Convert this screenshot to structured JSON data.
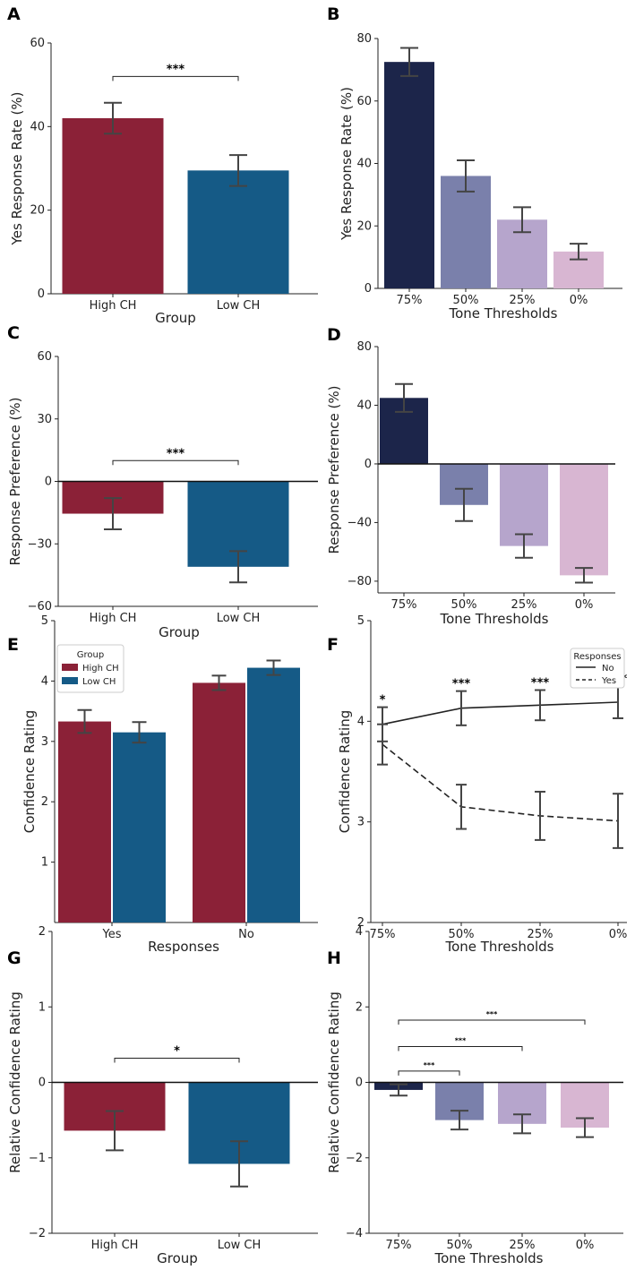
{
  "chart_data": [
    {
      "id": "A",
      "type": "bar",
      "panel_letter": "A",
      "categories": [
        "High CH",
        "Low CH"
      ],
      "values": [
        42,
        29.5
      ],
      "errors": [
        3.7,
        3.7
      ],
      "colors": [
        "#8b2137",
        "#155a86"
      ],
      "xlabel": "Group",
      "ylabel": "Yes Response Rate (%)",
      "ylim": [
        0,
        60
      ],
      "yticks": [
        0,
        20,
        40,
        60
      ],
      "ytick_labels": [
        "0",
        "20",
        "40",
        "60"
      ],
      "significance": [
        {
          "from": 0,
          "to": 1,
          "level": 52,
          "label": "***"
        }
      ]
    },
    {
      "id": "B",
      "type": "bar",
      "panel_letter": "B",
      "categories": [
        "75%",
        "50%",
        "25%",
        "0%"
      ],
      "values": [
        72.5,
        36,
        22,
        11.8
      ],
      "errors": [
        4.5,
        5,
        4,
        2.5
      ],
      "colors": [
        "#1c254a",
        "#7a80ab",
        "#b6a5cc",
        "#d8b6d2"
      ],
      "xlabel": "Tone Thresholds",
      "ylabel": "Yes Response Rate (%)",
      "ylim": [
        0,
        80
      ],
      "yticks": [
        0,
        20,
        40,
        60,
        80
      ],
      "ytick_labels": [
        "0",
        "20",
        "40",
        "60",
        "80"
      ],
      "significance": []
    },
    {
      "id": "C",
      "type": "bar",
      "panel_letter": "C",
      "categories": [
        "High CH",
        "Low CH"
      ],
      "values": [
        -15.5,
        -41
      ],
      "errors": [
        7.5,
        7.5
      ],
      "colors": [
        "#8b2137",
        "#155a86"
      ],
      "xlabel": "Group",
      "ylabel": "Response Preference (%)",
      "ylim": [
        -60,
        60
      ],
      "yticks": [
        -60,
        -30,
        0,
        30,
        60
      ],
      "ytick_labels": [
        "−60",
        "−30",
        "0",
        "30",
        "60"
      ],
      "zero_line": true,
      "significance": [
        {
          "from": 0,
          "to": 1,
          "level": 10,
          "label": "***"
        }
      ]
    },
    {
      "id": "D",
      "type": "bar",
      "panel_letter": "D",
      "categories": [
        "75%",
        "50%",
        "25%",
        "0%"
      ],
      "values": [
        45,
        -28,
        -56,
        -76
      ],
      "errors": [
        9.5,
        11,
        8,
        5
      ],
      "colors": [
        "#1c254a",
        "#7a80ab",
        "#b6a5cc",
        "#d8b6d2"
      ],
      "xlabel": "Tone Thresholds",
      "ylabel": "Response Preference (%)",
      "ylim": [
        -88,
        80
      ],
      "yticks": [
        -80,
        -40,
        0,
        40,
        80
      ],
      "ytick_labels": [
        "−80",
        "−40",
        "0",
        "40",
        "80"
      ],
      "zero_line": true,
      "significance": []
    },
    {
      "id": "E",
      "type": "grouped-bar",
      "panel_letter": "E",
      "categories": [
        "Yes",
        "No"
      ],
      "series": [
        {
          "name": "High CH",
          "values": [
            3.33,
            3.97
          ],
          "errors": [
            0.19,
            0.12
          ],
          "color": "#8b2137"
        },
        {
          "name": "Low CH",
          "values": [
            3.15,
            4.22
          ],
          "errors": [
            0.17,
            0.12
          ],
          "color": "#155a86"
        }
      ],
      "legend_title": "Group",
      "xlabel": "Responses",
      "ylabel": "Confidence Rating",
      "ylim": [
        0,
        5
      ],
      "yticks": [
        1,
        2,
        3,
        4,
        5
      ],
      "ytick_labels": [
        "1",
        "2",
        "3",
        "4",
        "5"
      ],
      "significance": []
    },
    {
      "id": "F",
      "type": "line",
      "panel_letter": "F",
      "categories": [
        "75%",
        "50%",
        "25%",
        "0%"
      ],
      "series": [
        {
          "name": "No",
          "values": [
            3.97,
            4.13,
            4.16,
            4.19
          ],
          "errors": [
            0.17,
            0.17,
            0.15,
            0.16
          ],
          "dash": "solid"
        },
        {
          "name": "Yes",
          "values": [
            3.77,
            3.15,
            3.06,
            3.01
          ],
          "errors": [
            0.2,
            0.22,
            0.24,
            0.27
          ],
          "dash": "dashed"
        }
      ],
      "legend_title": "Responses",
      "xlabel": "Tone Thresholds",
      "ylabel": "Confidence Rating",
      "ylim": [
        2,
        5
      ],
      "yticks": [
        2,
        3,
        4,
        5
      ],
      "ytick_labels": [
        "2",
        "3",
        "4",
        "5"
      ],
      "point_annotations": [
        "*",
        "***",
        "***",
        "***"
      ]
    },
    {
      "id": "G",
      "type": "bar",
      "panel_letter": "G",
      "categories": [
        "High CH",
        "Low CH"
      ],
      "values": [
        -0.64,
        -1.08
      ],
      "errors": [
        0.26,
        0.3
      ],
      "colors": [
        "#8b2137",
        "#155a86"
      ],
      "xlabel": "Group",
      "ylabel": "Relative Confidence Rating",
      "ylim": [
        -2,
        2
      ],
      "yticks": [
        -2,
        -1,
        0,
        1,
        2
      ],
      "ytick_labels": [
        "−2",
        "−1",
        "0",
        "1",
        "2"
      ],
      "zero_line": true,
      "significance": [
        {
          "from": 0,
          "to": 1,
          "level": 0.32,
          "label": "*"
        }
      ]
    },
    {
      "id": "H",
      "type": "bar",
      "panel_letter": "H",
      "categories": [
        "75%",
        "50%",
        "25%",
        "0%"
      ],
      "values": [
        -0.2,
        -1.0,
        -1.1,
        -1.2
      ],
      "errors": [
        0.15,
        0.25,
        0.25,
        0.25
      ],
      "colors": [
        "#1c254a",
        "#7a80ab",
        "#b6a5cc",
        "#d8b6d2"
      ],
      "xlabel": "Tone Thresholds",
      "ylabel": "Relative Confidence Rating",
      "ylim": [
        -4,
        4
      ],
      "yticks": [
        -4,
        -2,
        0,
        2,
        4
      ],
      "ytick_labels": [
        "−4",
        "−2",
        "0",
        "2",
        "4"
      ],
      "zero_line": true,
      "significance": [
        {
          "from": 0,
          "to": 1,
          "level": 0.3,
          "label": "***"
        },
        {
          "from": 0,
          "to": 2,
          "level": 0.95,
          "label": "***"
        },
        {
          "from": 0,
          "to": 3,
          "level": 1.65,
          "label": "***"
        }
      ]
    }
  ]
}
